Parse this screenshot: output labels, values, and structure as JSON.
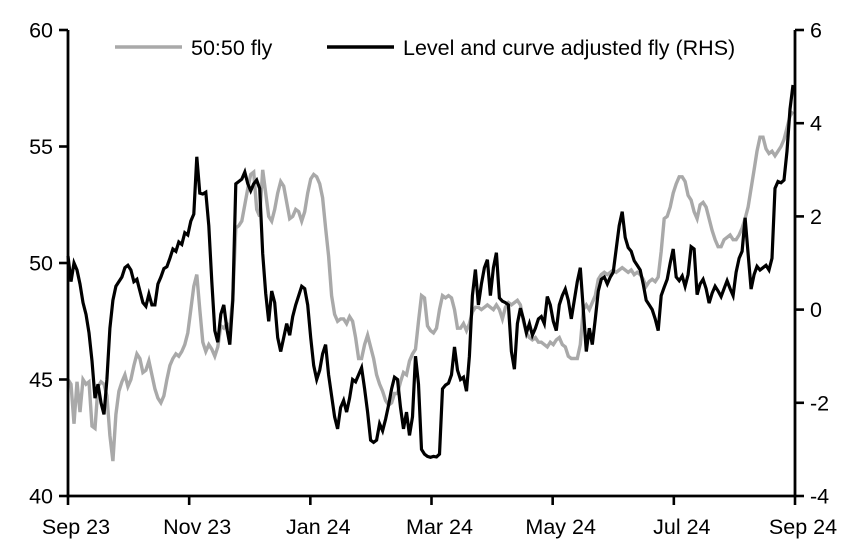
{
  "chart": {
    "background": "#ffffff",
    "axis_color": "#000000",
    "legend": {
      "items": [
        {
          "label": "50:50 fly",
          "color": "#a9a9a9"
        },
        {
          "label": "Level and curve adjusted fly (RHS)",
          "color": "#000000"
        }
      ]
    },
    "x_tick_labels": [
      "Sep 23",
      "Nov 23",
      "Jan 24",
      "Mar 24",
      "May 24",
      "Jul 24",
      "Sep 24"
    ],
    "left_tick_labels": [
      "60",
      "55",
      "50",
      "45",
      "40"
    ],
    "right_tick_labels": [
      "6",
      "4",
      "2",
      "0",
      "-2",
      "-4"
    ]
  },
  "chart_data": {
    "type": "line",
    "title": "",
    "xlabel": "",
    "ylabel_left": "",
    "ylabel_right": "",
    "grid": false,
    "legend_position": "top",
    "x_range": [
      "Sep 2023",
      "Sep 2024"
    ],
    "x_tick_labels": [
      "Sep 23",
      "Nov 23",
      "Jan 24",
      "Mar 24",
      "May 24",
      "Jul 24",
      "Sep 24"
    ],
    "left_ylim": [
      40,
      60
    ],
    "left_ticks": [
      60,
      55,
      50,
      45,
      40
    ],
    "right_ylim": [
      -4,
      6
    ],
    "right_ticks": [
      6,
      4,
      2,
      0,
      -2,
      -4
    ],
    "series": [
      {
        "name": "50:50 fly",
        "axis": "left",
        "color": "#a9a9a9",
        "line_width": 3.4,
        "values": [
          45.0,
          44.8,
          43.1,
          44.9,
          43.6,
          45.0,
          44.8,
          44.9,
          43.0,
          42.9,
          44.7,
          44.9,
          44.8,
          44.3,
          42.6,
          41.5,
          43.5,
          44.5,
          44.9,
          45.2,
          44.7,
          45.0,
          45.6,
          46.1,
          45.9,
          45.3,
          45.4,
          45.8,
          45.2,
          44.6,
          44.2,
          44.0,
          44.3,
          45.0,
          45.6,
          45.9,
          46.1,
          46.0,
          46.2,
          46.5,
          47.0,
          48.0,
          49.0,
          49.5,
          48.0,
          46.6,
          46.2,
          46.5,
          46.3,
          46.0,
          46.4,
          47.3,
          47.2,
          47.4,
          47.2,
          48.5,
          51.5,
          51.6,
          51.8,
          52.5,
          53.2,
          53.8,
          53.9,
          52.3,
          52.0,
          54.0,
          53.0,
          52.0,
          51.8,
          52.3,
          53.0,
          53.5,
          53.3,
          52.6,
          51.9,
          52.0,
          52.3,
          52.2,
          51.8,
          52.2,
          53.0,
          53.6,
          53.8,
          53.7,
          53.4,
          52.8,
          51.5,
          50.3,
          48.6,
          47.8,
          47.5,
          47.6,
          47.6,
          47.4,
          47.7,
          47.5,
          46.8,
          45.9,
          45.9,
          46.5,
          46.9,
          46.4,
          45.9,
          45.2,
          44.8,
          44.5,
          44.1,
          43.9,
          44.0,
          44.4,
          44.4,
          44.9,
          45.3,
          45.2,
          45.8,
          46.1,
          46.3,
          47.5,
          48.6,
          48.5,
          47.3,
          47.1,
          47.0,
          47.2,
          48.0,
          48.6,
          48.5,
          48.6,
          48.5,
          48.0,
          47.2,
          47.2,
          47.4,
          47.1,
          47.4,
          47.9,
          48.1,
          48.1,
          48.0,
          48.1,
          48.2,
          48.1,
          48.0,
          48.2,
          48.0,
          47.6,
          48.1,
          48.3,
          48.2,
          48.3,
          48.4,
          48.2,
          47.5,
          47.0,
          46.8,
          46.7,
          46.8,
          46.6,
          46.6,
          46.5,
          46.4,
          46.6,
          46.5,
          46.7,
          46.8,
          46.5,
          46.4,
          46.0,
          45.9,
          45.9,
          45.9,
          46.5,
          48.0,
          48.2,
          48.0,
          48.3,
          48.6,
          49.3,
          49.5,
          49.6,
          49.5,
          49.6,
          49.7,
          49.6,
          49.7,
          49.8,
          49.7,
          49.6,
          49.7,
          49.5,
          49.6,
          49.5,
          49.3,
          49.0,
          49.2,
          49.3,
          49.2,
          49.4,
          50.5,
          51.9,
          52.0,
          52.4,
          53.0,
          53.4,
          53.7,
          53.7,
          53.5,
          52.9,
          52.7,
          52.2,
          51.9,
          52.5,
          52.6,
          52.4,
          51.9,
          51.4,
          51.0,
          50.7,
          50.7,
          51.0,
          51.1,
          51.2,
          51.0,
          51.0,
          51.2,
          51.5,
          51.9,
          52.4,
          53.2,
          54.0,
          54.8,
          55.4,
          55.4,
          54.9,
          54.7,
          54.8,
          54.6,
          54.8,
          55.0,
          55.3,
          55.8,
          56.3,
          56.5
        ]
      },
      {
        "name": "Level and curve adjusted fly (RHS)",
        "axis": "right",
        "color": "#000000",
        "line_width": 3.2,
        "values": [
          1.15,
          0.6,
          1.0,
          0.85,
          0.55,
          0.15,
          -0.1,
          -0.5,
          -1.1,
          -1.9,
          -1.6,
          -2.0,
          -2.25,
          -1.5,
          -0.4,
          0.2,
          0.5,
          0.6,
          0.7,
          0.9,
          0.95,
          0.85,
          0.6,
          0.65,
          0.4,
          0.15,
          0.07,
          0.33,
          0.1,
          0.1,
          0.55,
          0.7,
          0.88,
          0.92,
          1.1,
          1.3,
          1.25,
          1.45,
          1.4,
          1.65,
          1.6,
          1.9,
          2.05,
          3.28,
          2.5,
          2.48,
          2.52,
          1.8,
          0.6,
          -0.45,
          -0.7,
          -0.1,
          0.1,
          -0.4,
          -0.75,
          0.2,
          2.7,
          2.75,
          2.8,
          2.95,
          2.7,
          2.55,
          2.7,
          2.78,
          2.6,
          1.2,
          0.35,
          -0.25,
          0.4,
          0.15,
          -0.6,
          -0.9,
          -0.6,
          -0.3,
          -0.55,
          -0.15,
          0.1,
          0.3,
          0.5,
          0.45,
          0.1,
          -0.6,
          -1.2,
          -1.5,
          -1.3,
          -0.95,
          -0.75,
          -1.4,
          -1.85,
          -2.3,
          -2.56,
          -2.1,
          -1.95,
          -2.2,
          -1.9,
          -1.5,
          -1.55,
          -1.4,
          -1.25,
          -1.7,
          -2.2,
          -2.8,
          -2.85,
          -2.8,
          -2.45,
          -2.6,
          -2.35,
          -2.05,
          -1.7,
          -1.45,
          -1.5,
          -2.1,
          -2.56,
          -2.2,
          -2.7,
          -2.3,
          -1.0,
          -1.6,
          -3.0,
          -3.1,
          -3.15,
          -3.17,
          -3.15,
          -3.16,
          -3.1,
          -1.7,
          -1.62,
          -1.58,
          -1.4,
          -0.8,
          -1.3,
          -1.5,
          -1.45,
          -1.75,
          -1.0,
          0.3,
          0.86,
          0.1,
          0.55,
          0.9,
          1.07,
          0.3,
          0.9,
          1.22,
          0.25,
          0.18,
          0.15,
          0.1,
          -0.9,
          -1.28,
          -0.3,
          0.03,
          -0.2,
          -0.5,
          -0.3,
          -0.55,
          -0.4,
          -0.2,
          -0.15,
          -0.3,
          0.28,
          0.1,
          -0.25,
          -0.45,
          0.1,
          0.3,
          0.44,
          0.2,
          -0.2,
          0.2,
          0.6,
          0.9,
          0.0,
          -0.9,
          -0.4,
          -0.75,
          -0.2,
          0.4,
          0.65,
          0.7,
          0.55,
          0.7,
          0.8,
          1.3,
          1.8,
          2.1,
          1.55,
          1.33,
          1.25,
          1.05,
          0.95,
          0.85,
          0.55,
          0.2,
          0.1,
          0.0,
          -0.2,
          -0.45,
          0.3,
          0.48,
          0.65,
          1.0,
          1.3,
          0.7,
          0.62,
          0.72,
          0.5,
          0.75,
          1.35,
          1.3,
          0.32,
          0.55,
          0.65,
          0.45,
          0.14,
          0.35,
          0.5,
          0.4,
          0.28,
          0.45,
          0.62,
          0.45,
          0.3,
          0.8,
          1.1,
          1.25,
          1.97,
          1.2,
          0.44,
          0.75,
          0.93,
          0.85,
          0.9,
          0.95,
          0.85,
          1.1,
          2.6,
          2.75,
          2.72,
          2.78,
          3.4,
          4.3,
          4.82
        ]
      }
    ]
  }
}
